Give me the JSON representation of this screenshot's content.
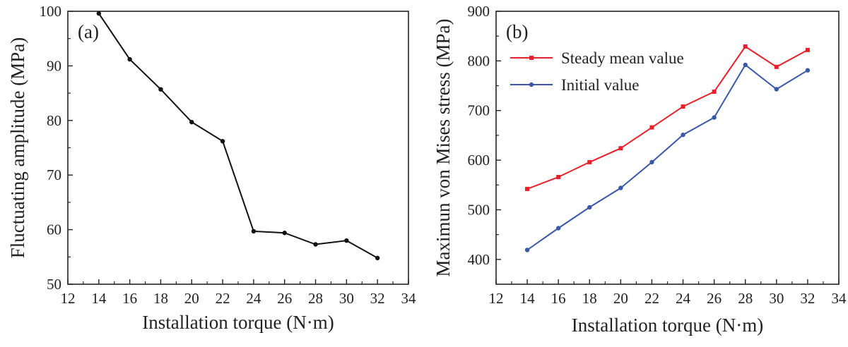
{
  "chart_data": [
    {
      "panel_label": "(a)",
      "type": "line",
      "xlabel": "Installation torque (N·m)",
      "ylabel": "Fluctuating amplitude (MPa)",
      "xlim": [
        12,
        34
      ],
      "ylim": [
        50,
        100
      ],
      "xticks": [
        "12",
        "14",
        "16",
        "18",
        "20",
        "22",
        "24",
        "26",
        "28",
        "30",
        "32",
        "34"
      ],
      "yticks": [
        "50",
        "60",
        "70",
        "80",
        "90",
        "100"
      ],
      "grid": false,
      "x": [
        14,
        16,
        18,
        20,
        22,
        24,
        26,
        28,
        30,
        32
      ],
      "series": [
        {
          "color": "#111111",
          "marker": "circle",
          "values": [
            99.6,
            91.2,
            85.7,
            79.7,
            76.2,
            59.7,
            59.4,
            57.3,
            58.0,
            54.8
          ]
        }
      ]
    },
    {
      "panel_label": "(b)",
      "type": "line",
      "xlabel": "Installation torque (N·m)",
      "ylabel": "Maximun von Mises stress (MPa)",
      "xlim": [
        12,
        34
      ],
      "ylim": [
        350,
        900
      ],
      "xticks": [
        "12",
        "14",
        "16",
        "18",
        "20",
        "22",
        "24",
        "26",
        "28",
        "30",
        "32",
        "34"
      ],
      "yticks": [
        "400",
        "500",
        "600",
        "700",
        "800",
        "900"
      ],
      "grid": false,
      "legend_position": "top-left",
      "x": [
        14,
        16,
        18,
        20,
        22,
        24,
        26,
        28,
        30,
        32
      ],
      "series": [
        {
          "name": "Steady mean value",
          "color": "#e8202a",
          "marker": "square",
          "values": [
            542,
            566,
            596,
            624,
            666,
            708,
            738,
            829,
            788,
            822
          ]
        },
        {
          "name": "Initial value",
          "color": "#3a58a8",
          "marker": "circle",
          "values": [
            419,
            463,
            505,
            544,
            596,
            651,
            686,
            792,
            743,
            781
          ]
        }
      ]
    }
  ]
}
